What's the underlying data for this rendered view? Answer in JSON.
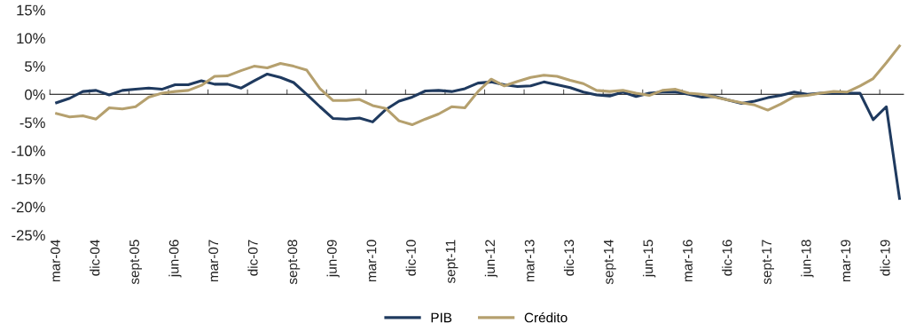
{
  "chart_data": {
    "type": "line",
    "categories": [
      "mar-04",
      null,
      null,
      "dic-04",
      null,
      null,
      "sept-05",
      null,
      null,
      "jun-06",
      null,
      null,
      "mar-07",
      null,
      null,
      "dic-07",
      null,
      null,
      "sept-08",
      null,
      null,
      "jun-09",
      null,
      null,
      "mar-10",
      null,
      null,
      "dic-10",
      null,
      null,
      "sept-11",
      null,
      null,
      "jun-12",
      null,
      null,
      "mar-13",
      null,
      null,
      "dic-13",
      null,
      null,
      "sept-14",
      null,
      null,
      "jun-15",
      null,
      null,
      "mar-16",
      null,
      null,
      "dic-16",
      null,
      null,
      "sept-17",
      null,
      null,
      "jun-18",
      null,
      null,
      "mar-19",
      null,
      null,
      "dic-19",
      null
    ],
    "series": [
      {
        "name": "PIB",
        "color": "#1f3a5f",
        "values": [
          -1.5,
          -0.7,
          0.5,
          0.7,
          -0.1,
          0.7,
          0.9,
          1.1,
          0.9,
          1.7,
          1.7,
          2.4,
          1.8,
          1.8,
          1.1,
          2.4,
          3.6,
          3.0,
          2.1,
          0.0,
          -2.2,
          -4.3,
          -4.4,
          -4.2,
          -4.9,
          -2.7,
          -1.2,
          -0.5,
          0.6,
          0.7,
          0.5,
          1.0,
          2.0,
          2.2,
          1.7,
          1.4,
          1.5,
          2.2,
          1.7,
          1.2,
          0.4,
          -0.1,
          -0.3,
          0.4,
          -0.4,
          0.2,
          0.4,
          0.4,
          0.0,
          -0.5,
          -0.4,
          -1.0,
          -1.6,
          -1.2,
          -0.6,
          -0.2,
          0.4,
          0.0,
          0.2,
          0.2,
          0.2,
          0.2,
          -4.5,
          -2.2,
          -18.5
        ]
      },
      {
        "name": "Crédito",
        "color": "#b5a06e",
        "values": [
          -3.4,
          -4.0,
          -3.8,
          -4.4,
          -2.4,
          -2.6,
          -2.2,
          -0.5,
          0.2,
          0.5,
          0.7,
          1.6,
          3.2,
          3.3,
          4.2,
          5.0,
          4.7,
          5.5,
          5.0,
          4.3,
          1.0,
          -1.1,
          -1.1,
          -0.9,
          -2.0,
          -2.5,
          -4.7,
          -5.4,
          -4.4,
          -3.5,
          -2.2,
          -2.4,
          0.5,
          2.7,
          1.5,
          2.3,
          3.0,
          3.4,
          3.2,
          2.5,
          1.9,
          0.7,
          0.5,
          0.7,
          0.2,
          -0.2,
          0.7,
          0.9,
          0.2,
          0.0,
          -0.5,
          -1.0,
          -1.5,
          -1.9,
          -2.8,
          -1.7,
          -0.4,
          -0.2,
          0.2,
          0.5,
          0.4,
          1.5,
          2.8,
          5.6,
          8.6
        ]
      }
    ],
    "ylim": [
      -25,
      15
    ],
    "yticks": [
      {
        "value": -25,
        "label": "-25%"
      },
      {
        "value": -20,
        "label": "-20%"
      },
      {
        "value": -15,
        "label": "-15%"
      },
      {
        "value": -10,
        "label": "-10%"
      },
      {
        "value": -5,
        "label": "-5%"
      },
      {
        "value": 0,
        "label": "0%"
      },
      {
        "value": 5,
        "label": "5%"
      },
      {
        "value": 10,
        "label": "10%"
      },
      {
        "value": 15,
        "label": "15%"
      }
    ],
    "legend": "bottom",
    "line_style": "solid",
    "marker": "none"
  }
}
